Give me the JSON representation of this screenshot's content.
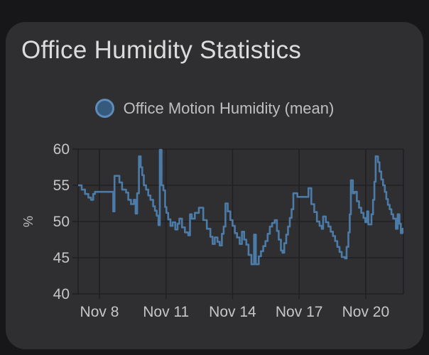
{
  "card": {
    "title": "Office Humidity Statistics"
  },
  "legend": {
    "label": "Office Motion Humidity (mean)",
    "marker_fill": "#365a7d",
    "marker_stroke": "#5d8cbb"
  },
  "chart_data": {
    "type": "line",
    "interpolation": "step-after",
    "title": "Office Humidity Statistics",
    "ylabel": "%",
    "ylim": [
      40,
      60
    ],
    "yticks": [
      60,
      55,
      50,
      45,
      40
    ],
    "xlim_days": [
      0.04,
      14.7
    ],
    "xticks": [
      {
        "label": "Nov 8",
        "day": 1
      },
      {
        "label": "Nov 11",
        "day": 4
      },
      {
        "label": "Nov 14",
        "day": 7
      },
      {
        "label": "Nov 17",
        "day": 10
      },
      {
        "label": "Nov 20",
        "day": 13
      }
    ],
    "grid": true,
    "legend_position": "top-center",
    "series": [
      {
        "name": "Office Motion Humidity (mean)",
        "color": "#4d7ba8",
        "unit": "%",
        "points_day_value": [
          [
            0.04,
            55.0
          ],
          [
            0.2,
            54.4
          ],
          [
            0.35,
            53.8
          ],
          [
            0.5,
            53.3
          ],
          [
            0.62,
            53.0
          ],
          [
            0.72,
            53.8
          ],
          [
            0.8,
            54.1
          ],
          [
            1.62,
            51.4
          ],
          [
            1.68,
            56.3
          ],
          [
            1.9,
            55.4
          ],
          [
            2.02,
            54.4
          ],
          [
            2.2,
            54.0
          ],
          [
            2.3,
            53.0
          ],
          [
            2.42,
            52.4
          ],
          [
            2.55,
            53.0
          ],
          [
            2.63,
            51.1
          ],
          [
            2.7,
            53.9
          ],
          [
            2.78,
            59.0
          ],
          [
            2.86,
            57.5
          ],
          [
            2.93,
            56.4
          ],
          [
            3.0,
            55.0
          ],
          [
            3.1,
            54.4
          ],
          [
            3.2,
            53.6
          ],
          [
            3.3,
            53.0
          ],
          [
            3.42,
            52.1
          ],
          [
            3.5,
            51.5
          ],
          [
            3.58,
            50.8
          ],
          [
            3.66,
            49.5
          ],
          [
            3.72,
            59.9
          ],
          [
            3.8,
            55.0
          ],
          [
            3.88,
            54.3
          ],
          [
            3.96,
            52.0
          ],
          [
            4.02,
            51.2
          ],
          [
            4.1,
            50.3
          ],
          [
            4.2,
            49.4
          ],
          [
            4.3,
            49.9
          ],
          [
            4.42,
            48.9
          ],
          [
            4.52,
            49.7
          ],
          [
            4.6,
            50.4
          ],
          [
            4.72,
            49.2
          ],
          [
            4.85,
            48.5
          ],
          [
            5.0,
            48.1
          ],
          [
            5.08,
            51.0
          ],
          [
            5.16,
            50.4
          ],
          [
            5.3,
            51.2
          ],
          [
            5.48,
            51.9
          ],
          [
            5.68,
            50.2
          ],
          [
            5.84,
            49.0
          ],
          [
            6.0,
            47.9
          ],
          [
            6.1,
            46.9
          ],
          [
            6.2,
            47.8
          ],
          [
            6.32,
            47.2
          ],
          [
            6.42,
            46.7
          ],
          [
            6.52,
            48.3
          ],
          [
            6.6,
            49.3
          ],
          [
            6.68,
            52.5
          ],
          [
            6.78,
            51.4
          ],
          [
            6.9,
            50.2
          ],
          [
            7.0,
            49.4
          ],
          [
            7.1,
            48.4
          ],
          [
            7.2,
            47.8
          ],
          [
            7.32,
            46.9
          ],
          [
            7.42,
            48.6
          ],
          [
            7.52,
            47.5
          ],
          [
            7.62,
            46.8
          ],
          [
            7.72,
            45.4
          ],
          [
            7.85,
            44.1
          ],
          [
            7.97,
            48.2
          ],
          [
            8.05,
            44.1
          ],
          [
            8.18,
            45.2
          ],
          [
            8.28,
            45.9
          ],
          [
            8.38,
            46.6
          ],
          [
            8.48,
            47.3
          ],
          [
            8.58,
            48.3
          ],
          [
            8.68,
            49.3
          ],
          [
            8.78,
            49.8
          ],
          [
            8.9,
            50.2
          ],
          [
            9.0,
            48.7
          ],
          [
            9.08,
            47.5
          ],
          [
            9.18,
            46.0
          ],
          [
            9.25,
            45.7
          ],
          [
            9.33,
            47.0
          ],
          [
            9.42,
            48.2
          ],
          [
            9.5,
            49.3
          ],
          [
            9.58,
            50.5
          ],
          [
            9.66,
            51.7
          ],
          [
            9.74,
            53.9
          ],
          [
            9.92,
            53.4
          ],
          [
            10.42,
            54.6
          ],
          [
            10.55,
            52.4
          ],
          [
            10.68,
            51.3
          ],
          [
            10.8,
            50.0
          ],
          [
            10.92,
            49.4
          ],
          [
            11.02,
            49.0
          ],
          [
            11.08,
            50.7
          ],
          [
            11.2,
            49.9
          ],
          [
            11.32,
            49.3
          ],
          [
            11.42,
            48.6
          ],
          [
            11.52,
            48.0
          ],
          [
            11.62,
            47.3
          ],
          [
            11.72,
            46.5
          ],
          [
            11.82,
            45.8
          ],
          [
            11.92,
            45.1
          ],
          [
            12.07,
            44.9
          ],
          [
            12.14,
            46.5
          ],
          [
            12.22,
            48.5
          ],
          [
            12.28,
            51.0
          ],
          [
            12.33,
            55.7
          ],
          [
            12.42,
            53.9
          ],
          [
            12.5,
            54.1
          ],
          [
            12.6,
            52.8
          ],
          [
            12.7,
            51.9
          ],
          [
            12.8,
            51.2
          ],
          [
            12.9,
            50.5
          ],
          [
            12.98,
            49.9
          ],
          [
            13.06,
            51.4
          ],
          [
            13.12,
            49.6
          ],
          [
            13.26,
            51.0
          ],
          [
            13.33,
            53.0
          ],
          [
            13.39,
            55.5
          ],
          [
            13.45,
            59.0
          ],
          [
            13.55,
            58.2
          ],
          [
            13.62,
            56.9
          ],
          [
            13.7,
            55.8
          ],
          [
            13.78,
            55.0
          ],
          [
            13.86,
            54.1
          ],
          [
            13.93,
            53.1
          ],
          [
            14.0,
            52.3
          ],
          [
            14.08,
            51.7
          ],
          [
            14.16,
            51.0
          ],
          [
            14.24,
            50.4
          ],
          [
            14.36,
            49.0
          ],
          [
            14.44,
            51.0
          ],
          [
            14.52,
            49.7
          ],
          [
            14.58,
            48.4
          ],
          [
            14.66,
            49.0
          ]
        ]
      }
    ],
    "style": {
      "grid_color": "#202023",
      "tick_label_color": "#c6c6c6",
      "axis_label_color": "#bdbdbd"
    }
  }
}
